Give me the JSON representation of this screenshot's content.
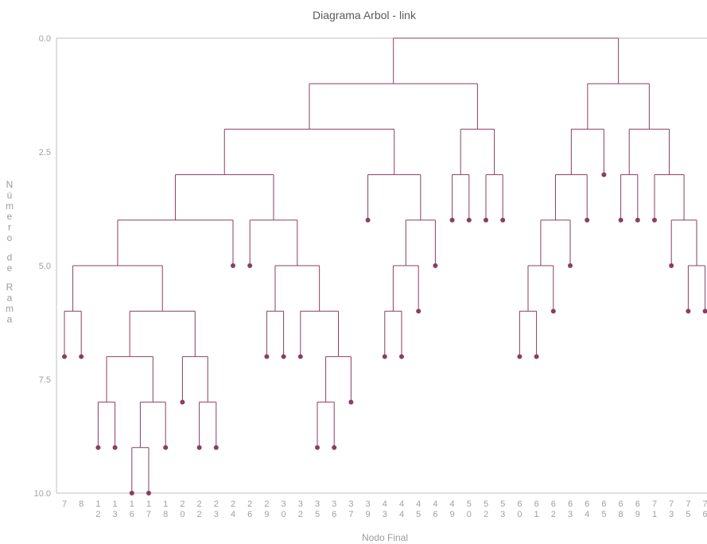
{
  "chart_data": {
    "type": "dendrogram",
    "title": "Diagrama Arbol - link",
    "xlabel": "Nodo Final",
    "ylabel": "Número de Rama",
    "y_inverted": true,
    "ylim": [
      0,
      10
    ],
    "yticks": [
      "0.0",
      "2.5",
      "5.0",
      "7.5",
      "10.0"
    ],
    "colors": {
      "branch": "#8b3d63",
      "axis": "#bfbfbf",
      "text": "#a0a0a0"
    },
    "leaves": [
      "7",
      "8",
      "12",
      "13",
      "16",
      "17",
      "18",
      "20",
      "22",
      "23",
      "24",
      "26",
      "29",
      "30",
      "32",
      "35",
      "36",
      "37",
      "39",
      "43",
      "44",
      "45",
      "46",
      "49",
      "50",
      "52",
      "53",
      "60",
      "61",
      "62",
      "63",
      "64",
      "65",
      "68",
      "69",
      "71",
      "73",
      "75",
      "76"
    ],
    "leaf_depths": [
      7,
      7,
      9,
      9,
      10,
      10,
      9,
      8,
      9,
      9,
      5,
      5,
      7,
      7,
      7,
      9,
      9,
      8,
      4,
      7,
      7,
      6,
      5,
      4,
      4,
      4,
      4,
      7,
      7,
      6,
      5,
      4,
      3,
      4,
      4,
      4,
      5,
      6,
      6
    ],
    "merges": [
      {
        "children": [
          "16",
          "17"
        ],
        "y": 9
      },
      {
        "children": [
          "12",
          "13"
        ],
        "y": 8
      },
      {
        "children": [
          "n1",
          "18"
        ],
        "y": 8
      },
      {
        "children": [
          "n2",
          "n3"
        ],
        "y": 7
      },
      {
        "children": [
          "22",
          "23"
        ],
        "y": 8
      },
      {
        "children": [
          "20",
          "n5"
        ],
        "y": 7
      },
      {
        "children": [
          "n4",
          "n6"
        ],
        "y": 6
      },
      {
        "children": [
          "7",
          "8"
        ],
        "y": 6
      },
      {
        "children": [
          "n8",
          "n7"
        ],
        "y": 5
      },
      {
        "children": [
          "n9",
          "24"
        ],
        "y": 4
      },
      {
        "children": [
          "29",
          "30"
        ],
        "y": 6
      },
      {
        "children": [
          "35",
          "36"
        ],
        "y": 8
      },
      {
        "children": [
          "n12",
          "37"
        ],
        "y": 7
      },
      {
        "children": [
          "32",
          "n13"
        ],
        "y": 6
      },
      {
        "children": [
          "n11",
          "n14"
        ],
        "y": 5
      },
      {
        "children": [
          "26",
          "n15"
        ],
        "y": 4
      },
      {
        "children": [
          "n10",
          "n16"
        ],
        "y": 3
      },
      {
        "children": [
          "43",
          "44"
        ],
        "y": 6
      },
      {
        "children": [
          "n18",
          "45"
        ],
        "y": 5
      },
      {
        "children": [
          "n19",
          "46"
        ],
        "y": 4
      },
      {
        "children": [
          "39",
          "n20"
        ],
        "y": 3
      },
      {
        "children": [
          "n17",
          "n21"
        ],
        "y": 2
      },
      {
        "children": [
          "49",
          "50"
        ],
        "y": 3
      },
      {
        "children": [
          "52",
          "53"
        ],
        "y": 3
      },
      {
        "children": [
          "n23",
          "n24"
        ],
        "y": 2
      },
      {
        "children": [
          "n22",
          "n25"
        ],
        "y": 1
      },
      {
        "children": [
          "60",
          "61"
        ],
        "y": 6
      },
      {
        "children": [
          "n27",
          "62"
        ],
        "y": 5
      },
      {
        "children": [
          "n28",
          "63"
        ],
        "y": 4
      },
      {
        "children": [
          "n29",
          "64"
        ],
        "y": 3
      },
      {
        "children": [
          "n30",
          "65"
        ],
        "y": 2
      },
      {
        "children": [
          "68",
          "69"
        ],
        "y": 3
      },
      {
        "children": [
          "75",
          "76"
        ],
        "y": 5
      },
      {
        "children": [
          "73",
          "n33"
        ],
        "y": 4
      },
      {
        "children": [
          "71",
          "n34"
        ],
        "y": 3
      },
      {
        "children": [
          "n32",
          "n35"
        ],
        "y": 2
      },
      {
        "children": [
          "n31",
          "n36"
        ],
        "y": 1
      },
      {
        "children": [
          "n26",
          "n37"
        ],
        "y": 0
      }
    ]
  }
}
